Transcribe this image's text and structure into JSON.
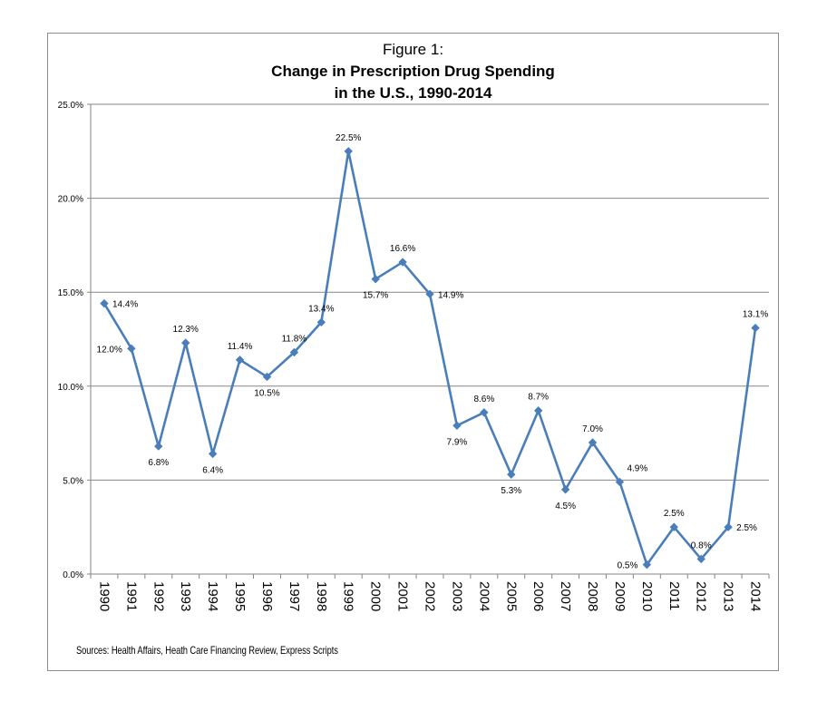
{
  "chart_data": {
    "type": "line",
    "title_line1": "Figure 1:",
    "title_line2": "Change in Prescription Drug Spending",
    "title_line3": "in the U.S., 1990-2014",
    "xlabel": "",
    "ylabel": "",
    "categories": [
      "1990",
      "1991",
      "1992",
      "1993",
      "1994",
      "1995",
      "1996",
      "1997",
      "1998",
      "1999",
      "2000",
      "2001",
      "2002",
      "2003",
      "2004",
      "2005",
      "2006",
      "2007",
      "2008",
      "2009",
      "2010",
      "2011",
      "2012",
      "2013",
      "2014"
    ],
    "series": [
      {
        "values": [
          14.4,
          12.0,
          6.8,
          12.3,
          6.4,
          11.4,
          10.5,
          11.8,
          13.4,
          22.5,
          15.7,
          16.6,
          14.9,
          7.9,
          8.6,
          5.3,
          8.7,
          4.5,
          7.0,
          4.9,
          0.5,
          2.5,
          0.8,
          2.5,
          13.1
        ],
        "labels": [
          "14.4%",
          "12.0%",
          "6.8%",
          "12.3%",
          "6.4%",
          "11.4%",
          "10.5%",
          "11.8%",
          "13.4%",
          "22.5%",
          "15.7%",
          "16.6%",
          "14.9%",
          "7.9%",
          "8.6%",
          "5.3%",
          "8.7%",
          "4.5%",
          "7.0%",
          "4.9%",
          "0.5%",
          "2.5%",
          "0.8%",
          "2.5%",
          "13.1%"
        ],
        "color": "#4a7ebb"
      }
    ],
    "ylim": [
      0,
      25
    ],
    "yticks": [
      0,
      5,
      10,
      15,
      20,
      25
    ],
    "ytick_labels": [
      "0.0%",
      "5.0%",
      "10.0%",
      "15.0%",
      "20.0%",
      "25.0%"
    ],
    "grid": true,
    "legend": "none",
    "source": "Sources: Health Affairs, Heath Care Financing Review, Express Scripts"
  }
}
